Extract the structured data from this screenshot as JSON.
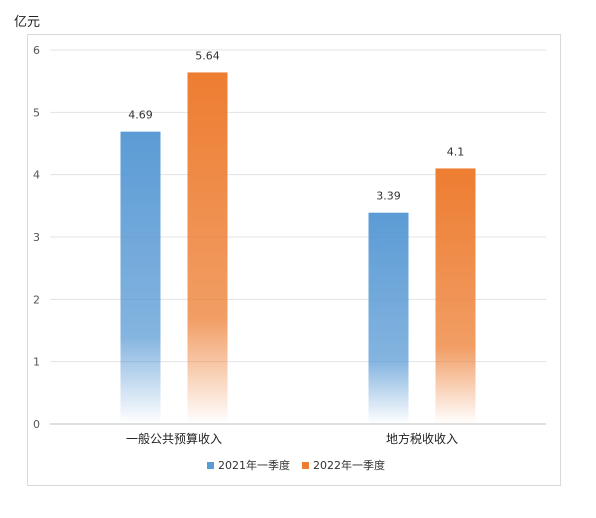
{
  "unit_label": "亿元",
  "colors": {
    "s1": "#5b9bd5",
    "s2": "#ed7d31",
    "grid": "#e3e3e3",
    "axis": "#bfbfbf"
  },
  "chart_data": {
    "type": "bar",
    "categories": [
      "一般公共预算收入",
      "地方税收收入"
    ],
    "series": [
      {
        "name": "2021年一季度",
        "values": [
          4.69,
          3.39
        ],
        "labels": [
          "4.69",
          "3.39"
        ]
      },
      {
        "name": "2022年一季度",
        "values": [
          5.64,
          4.1
        ],
        "labels": [
          "5.64",
          "4.1"
        ]
      }
    ],
    "y_ticks": [
      "0",
      "1",
      "2",
      "3",
      "4",
      "5",
      "6"
    ],
    "ylim": [
      0,
      6
    ],
    "grid": true,
    "legend": "bottom"
  }
}
